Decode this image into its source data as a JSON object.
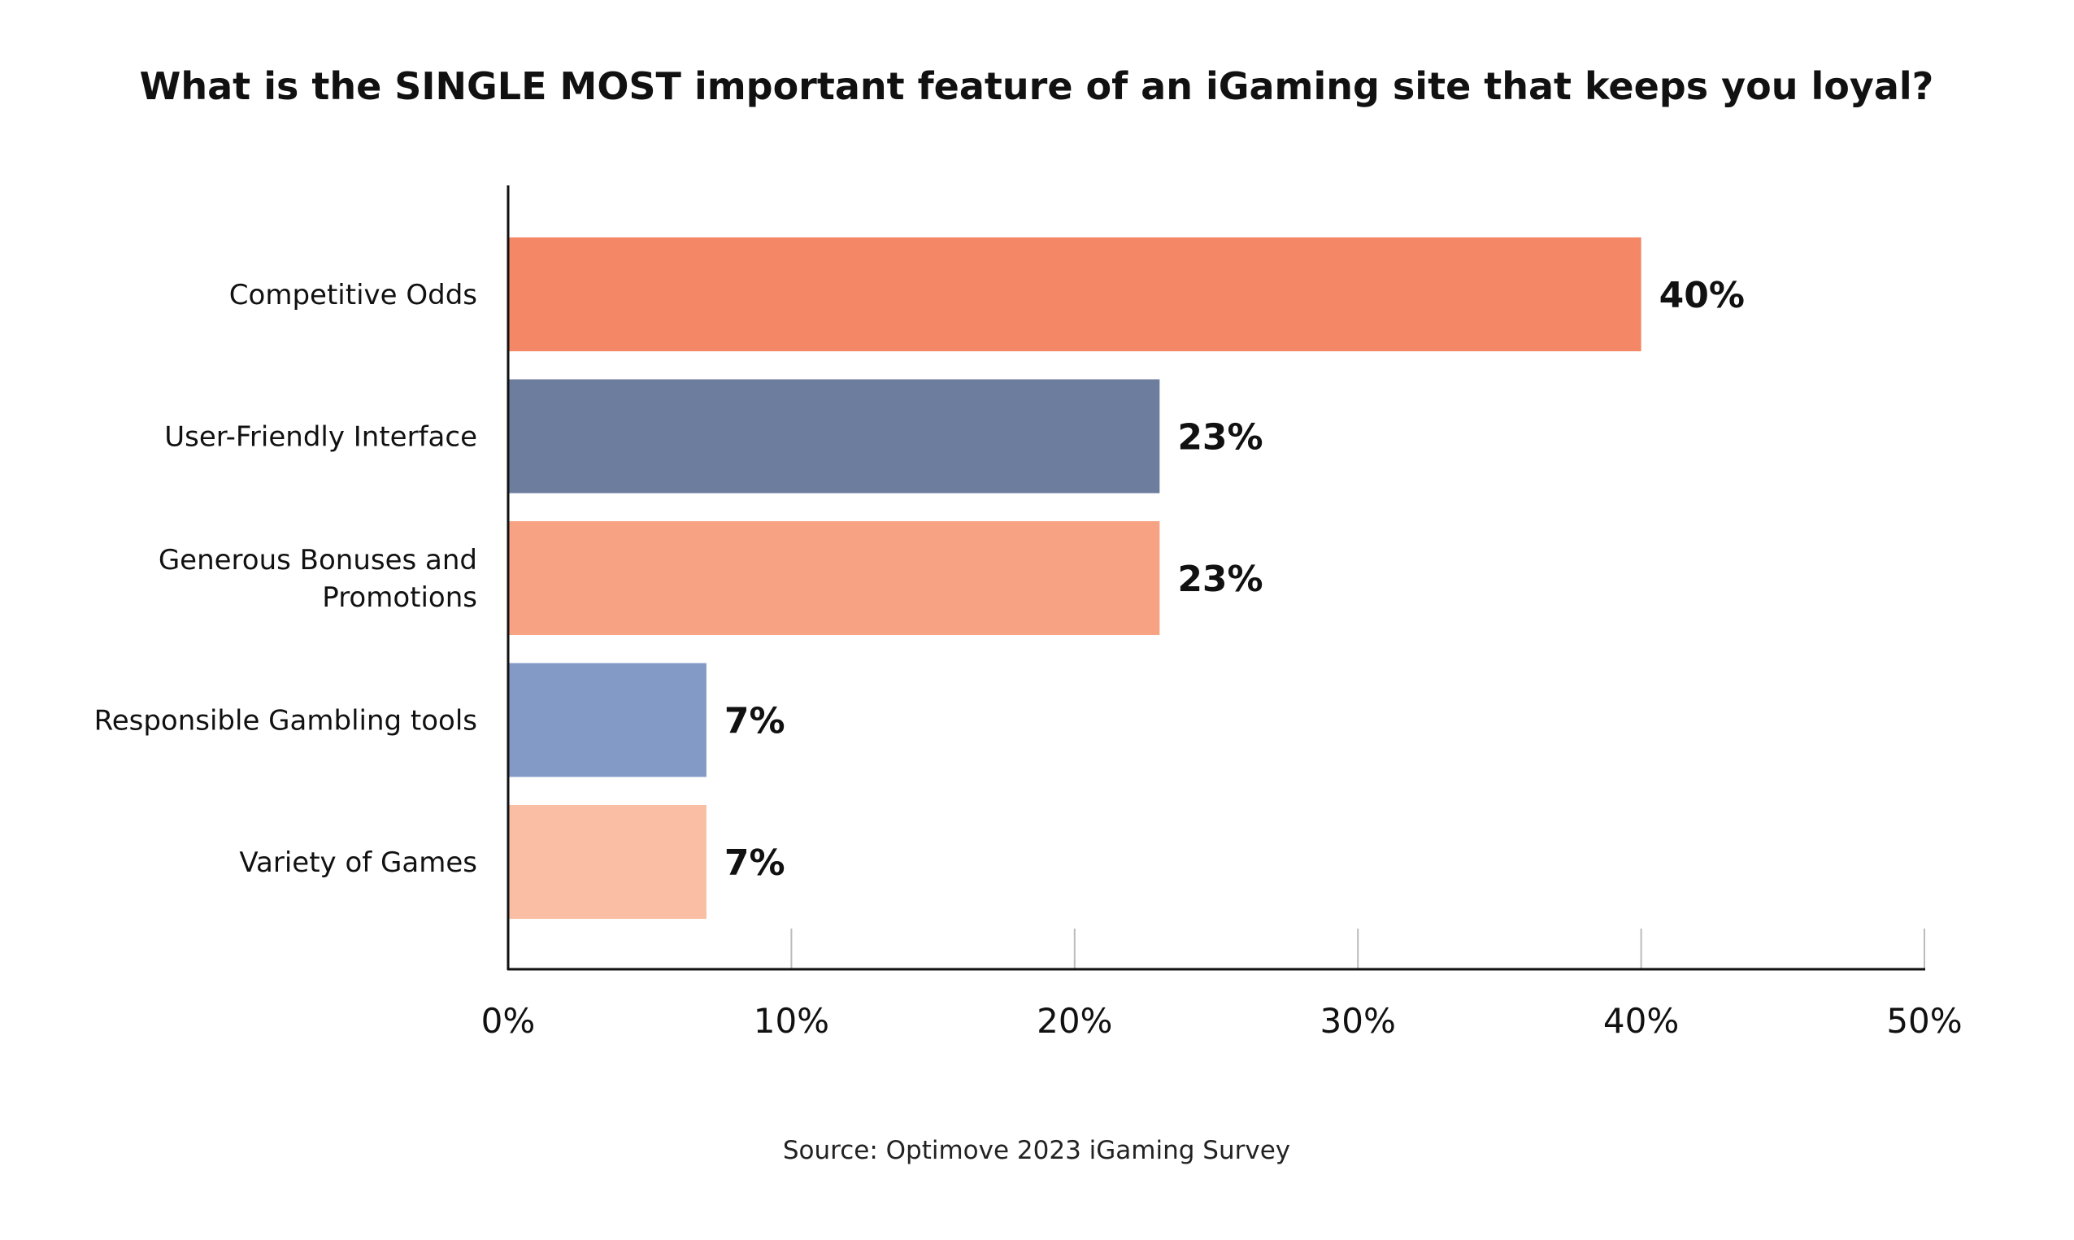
{
  "chart_data": {
    "type": "bar",
    "orientation": "horizontal",
    "title": "What is the SINGLE MOST important feature of an iGaming site that keeps you loyal?",
    "categories": [
      [
        "Competitive Odds"
      ],
      [
        "User-Friendly Interface"
      ],
      [
        "Generous Bonuses and",
        "Promotions"
      ],
      [
        "Responsible Gambling tools"
      ],
      [
        "Variety of Games"
      ]
    ],
    "values": [
      40,
      23,
      23,
      7,
      7
    ],
    "value_labels": [
      "40%",
      "23%",
      "23%",
      "7%",
      "7%"
    ],
    "bar_colors": [
      "#F48766",
      "#6D7D9E",
      "#F6A283",
      "#829AC5",
      "#F9BEA3"
    ],
    "xlim": [
      0,
      50
    ],
    "x_ticks": [
      0,
      10,
      20,
      30,
      40,
      50
    ],
    "x_tick_labels": [
      "0%",
      "10%",
      "20%",
      "30%",
      "40%",
      "50%"
    ],
    "xlabel": "",
    "ylabel": "",
    "grid": false,
    "legend": "none"
  },
  "source": "Source: Optimove 2023 iGaming Survey",
  "colors": {
    "axis": "#111111",
    "tick": "#bbbbbb",
    "text": "#111111"
  }
}
